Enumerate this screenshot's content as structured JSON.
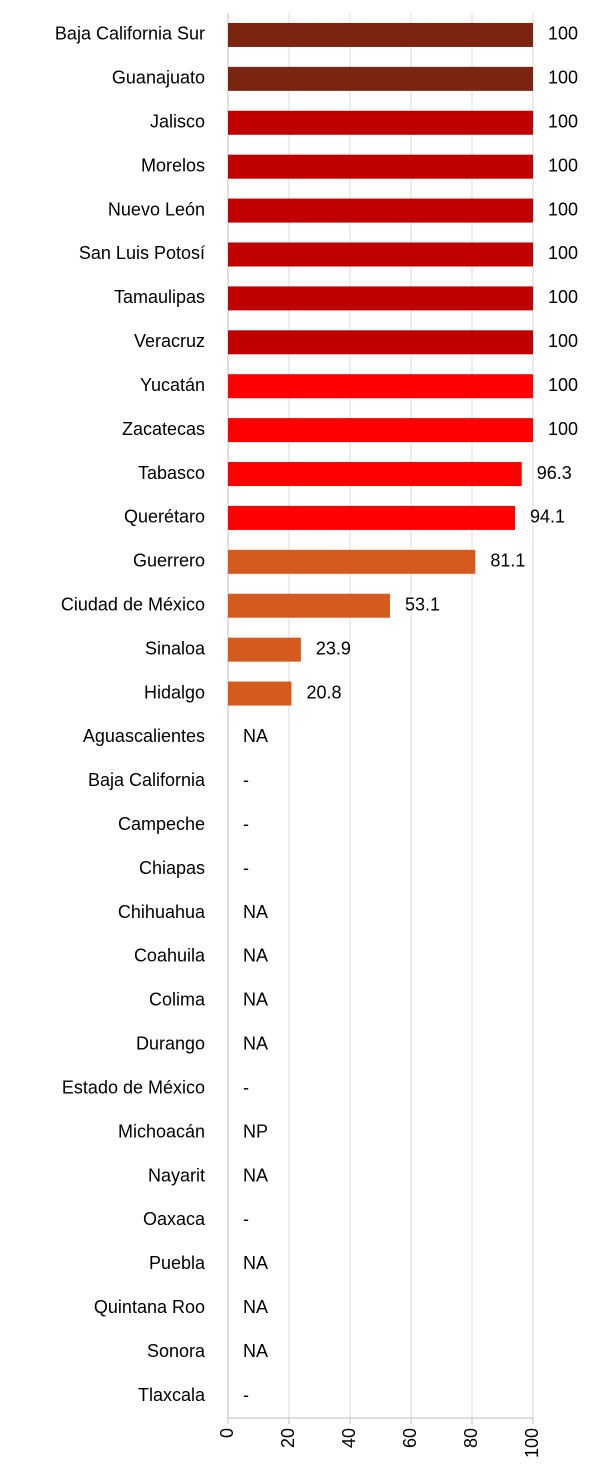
{
  "chart_data": {
    "type": "bar",
    "orientation": "horizontal",
    "categories": [
      "Baja California Sur",
      "Guanajuato",
      "Jalisco",
      "Morelos",
      "Nuevo León",
      "San Luis Potosí",
      "Tamaulipas",
      "Veracruz",
      "Yucatán",
      "Zacatecas",
      "Tabasco",
      "Querétaro",
      "Guerrero",
      "Ciudad de México",
      "Sinaloa",
      "Hidalgo",
      "Aguascalientes",
      "Baja California",
      "Campeche",
      "Chiapas",
      "Chihuahua",
      "Coahuila",
      "Colima",
      "Durango",
      "Estado de México",
      "Michoacán",
      "Nayarit",
      "Oaxaca",
      "Puebla",
      "Quintana Roo",
      "Sonora",
      "Tlaxcala"
    ],
    "values": [
      100,
      100,
      100,
      100,
      100,
      100,
      100,
      100,
      100,
      100,
      96.3,
      94.1,
      81.1,
      53.1,
      23.9,
      20.8,
      null,
      null,
      null,
      null,
      null,
      null,
      null,
      null,
      null,
      null,
      null,
      null,
      null,
      null,
      null,
      null
    ],
    "value_labels": [
      "100",
      "100",
      "100",
      "100",
      "100",
      "100",
      "100",
      "100",
      "100",
      "100",
      "96.3",
      "94.1",
      "81.1",
      "53.1",
      "23.9",
      "20.8",
      "NA",
      "-",
      "-",
      "-",
      "NA",
      "NA",
      "NA",
      "NA",
      "-",
      "NP",
      "NA",
      "-",
      "NA",
      "NA",
      "NA",
      "-"
    ],
    "colors": [
      "#7b2410",
      "#7b2410",
      "#c00000",
      "#c00000",
      "#c00000",
      "#c00000",
      "#c00000",
      "#c00000",
      "#ff0000",
      "#ff0000",
      "#ff0000",
      "#ff0000",
      "#d55a1e",
      "#d55a1e",
      "#d55a1e",
      "#d55a1e",
      null,
      null,
      null,
      null,
      null,
      null,
      null,
      null,
      null,
      null,
      null,
      null,
      null,
      null,
      null,
      null
    ],
    "xlim": [
      0,
      100
    ],
    "xticks": [
      0,
      20,
      40,
      60,
      80,
      100
    ],
    "grid": true
  }
}
